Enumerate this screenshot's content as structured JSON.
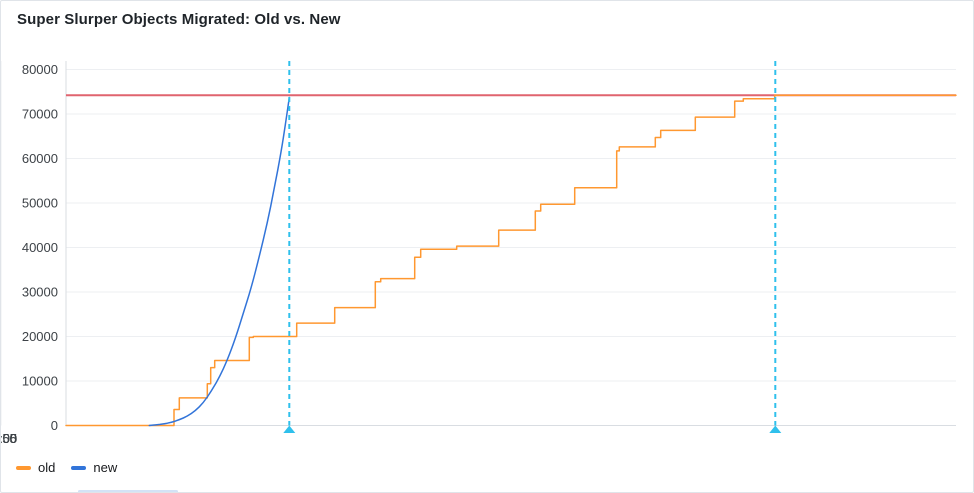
{
  "panel": {
    "title": "Super Slurper Objects Migrated: Old vs. New"
  },
  "chart_data": {
    "type": "line",
    "title": "Super Slurper Objects Migrated: Old vs. New",
    "x_axis": {
      "type": "time",
      "min": "11:46:10",
      "max": "12:08:25",
      "ticks": [
        "11:50",
        "11:55",
        "12:00",
        "12:05"
      ]
    },
    "y_axis": {
      "min": 0,
      "max": 81900,
      "ticks": [
        0,
        10000,
        20000,
        30000,
        40000,
        50000,
        60000,
        70000,
        80000
      ]
    },
    "grid": true,
    "legend_position": "bottom-left",
    "threshold": {
      "value": 74200,
      "color": "#e0646f"
    },
    "annotation_color": "#2fc0ec",
    "annotations": [
      {
        "time": "11:51:45"
      },
      {
        "time": "12:03:54"
      }
    ],
    "series": [
      {
        "name": "old",
        "color": "#ff9830",
        "style": "step-after",
        "points": [
          [
            "11:46:10",
            0
          ],
          [
            "11:48:52",
            3600
          ],
          [
            "11:49:00",
            6200
          ],
          [
            "11:49:42",
            9400
          ],
          [
            "11:49:47",
            13000
          ],
          [
            "11:49:53",
            14600
          ],
          [
            "11:50:45",
            19800
          ],
          [
            "11:50:51",
            20000
          ],
          [
            "11:51:56",
            23000
          ],
          [
            "11:52:53",
            26500
          ],
          [
            "11:53:54",
            32300
          ],
          [
            "11:54:02",
            33000
          ],
          [
            "11:54:53",
            37800
          ],
          [
            "11:55:02",
            39600
          ],
          [
            "11:55:56",
            40300
          ],
          [
            "11:56:59",
            43900
          ],
          [
            "11:57:54",
            48200
          ],
          [
            "11:58:02",
            49700
          ],
          [
            "11:58:53",
            53400
          ],
          [
            "11:59:56",
            61700
          ],
          [
            "12:00:00",
            62600
          ],
          [
            "12:00:54",
            64700
          ],
          [
            "12:01:02",
            66300
          ],
          [
            "12:01:54",
            69300
          ],
          [
            "12:02:53",
            72900
          ],
          [
            "12:03:06",
            73400
          ],
          [
            "12:03:53",
            74200
          ],
          [
            "12:08:25",
            74200
          ]
        ]
      },
      {
        "name": "new",
        "color": "#3274d9",
        "style": "smooth",
        "points": [
          [
            "11:48:15",
            0
          ],
          [
            "11:48:26",
            150
          ],
          [
            "11:48:36",
            350
          ],
          [
            "11:48:48",
            700
          ],
          [
            "11:49:00",
            1300
          ],
          [
            "11:49:12",
            2100
          ],
          [
            "11:49:24",
            3300
          ],
          [
            "11:49:36",
            5100
          ],
          [
            "11:49:48",
            7700
          ],
          [
            "11:50:00",
            10800
          ],
          [
            "11:50:12",
            14700
          ],
          [
            "11:50:24",
            19500
          ],
          [
            "11:50:36",
            25200
          ],
          [
            "11:50:48",
            31000
          ],
          [
            "11:51:00",
            38000
          ],
          [
            "11:51:12",
            45500
          ],
          [
            "11:51:22",
            53000
          ],
          [
            "11:51:33",
            61700
          ],
          [
            "11:51:39",
            67500
          ],
          [
            "11:51:45",
            73700
          ]
        ]
      }
    ]
  }
}
